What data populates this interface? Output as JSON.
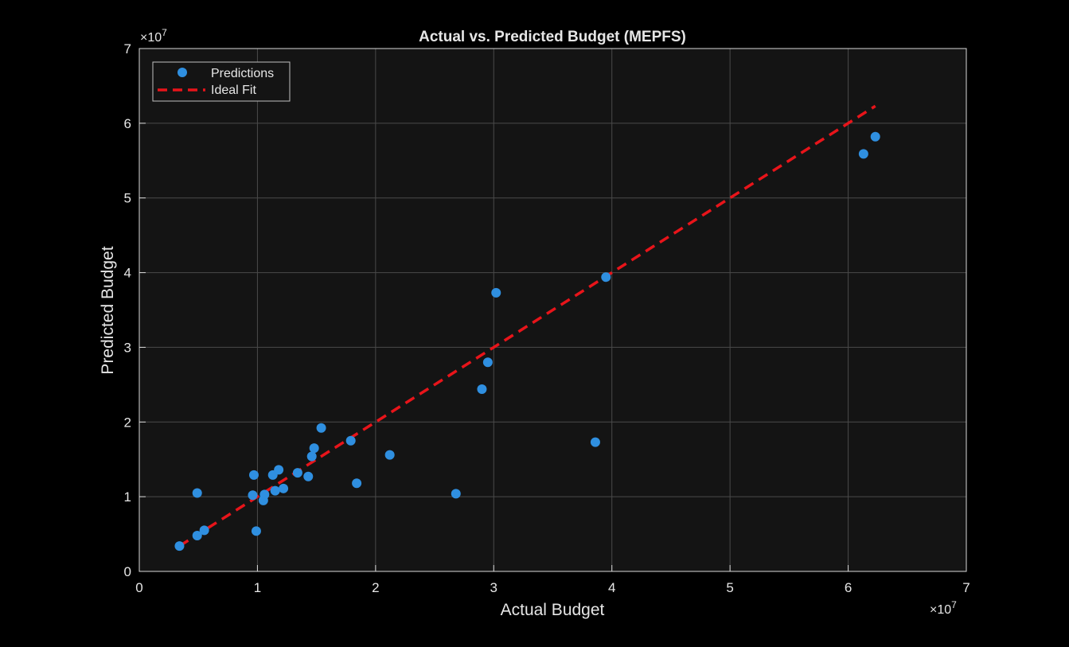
{
  "chart_data": {
    "type": "scatter",
    "title": "Actual vs. Predicted Budget (MEPFS)",
    "xlabel": "Actual Budget",
    "ylabel": "Predicted Budget",
    "xlim": [
      0,
      7
    ],
    "ylim": [
      0,
      7
    ],
    "x_exponent_label": "×10",
    "x_exponent_power": "7",
    "y_exponent_label": "×10",
    "y_exponent_power": "7",
    "xticks": [
      0,
      1,
      2,
      3,
      4,
      5,
      6,
      7
    ],
    "yticks": [
      0,
      1,
      2,
      3,
      4,
      5,
      6,
      7
    ],
    "grid": true,
    "legend_position": "top-left",
    "colors": {
      "background": "#000000",
      "axes_background": "#141414",
      "grid": "#4a4a4a",
      "axis": "#d9d9d9",
      "text": "#e6e6e6",
      "points": "#2f8fe0",
      "ideal_line": "#e8141a"
    },
    "series": [
      {
        "name": "Predictions",
        "kind": "scatter",
        "points": [
          {
            "x": 0.34,
            "y": 0.34
          },
          {
            "x": 0.49,
            "y": 1.05
          },
          {
            "x": 0.49,
            "y": 0.48
          },
          {
            "x": 0.55,
            "y": 0.55
          },
          {
            "x": 0.96,
            "y": 1.02
          },
          {
            "x": 0.97,
            "y": 1.29
          },
          {
            "x": 0.99,
            "y": 0.54
          },
          {
            "x": 1.05,
            "y": 0.95
          },
          {
            "x": 1.06,
            "y": 1.03
          },
          {
            "x": 1.13,
            "y": 1.29
          },
          {
            "x": 1.15,
            "y": 1.08
          },
          {
            "x": 1.18,
            "y": 1.36
          },
          {
            "x": 1.22,
            "y": 1.11
          },
          {
            "x": 1.34,
            "y": 1.32
          },
          {
            "x": 1.43,
            "y": 1.27
          },
          {
            "x": 1.46,
            "y": 1.54
          },
          {
            "x": 1.48,
            "y": 1.65
          },
          {
            "x": 1.54,
            "y": 1.92
          },
          {
            "x": 1.79,
            "y": 1.75
          },
          {
            "x": 1.84,
            "y": 1.18
          },
          {
            "x": 2.12,
            "y": 1.56
          },
          {
            "x": 2.68,
            "y": 1.04
          },
          {
            "x": 2.9,
            "y": 2.44
          },
          {
            "x": 2.95,
            "y": 2.8
          },
          {
            "x": 3.02,
            "y": 3.73
          },
          {
            "x": 3.86,
            "y": 1.73
          },
          {
            "x": 3.95,
            "y": 3.94
          },
          {
            "x": 6.13,
            "y": 5.59
          },
          {
            "x": 6.23,
            "y": 5.82
          }
        ]
      },
      {
        "name": "Ideal Fit",
        "kind": "line",
        "style": "dashed",
        "points": [
          {
            "x": 0.34,
            "y": 0.34
          },
          {
            "x": 6.23,
            "y": 6.23
          }
        ]
      }
    ]
  }
}
